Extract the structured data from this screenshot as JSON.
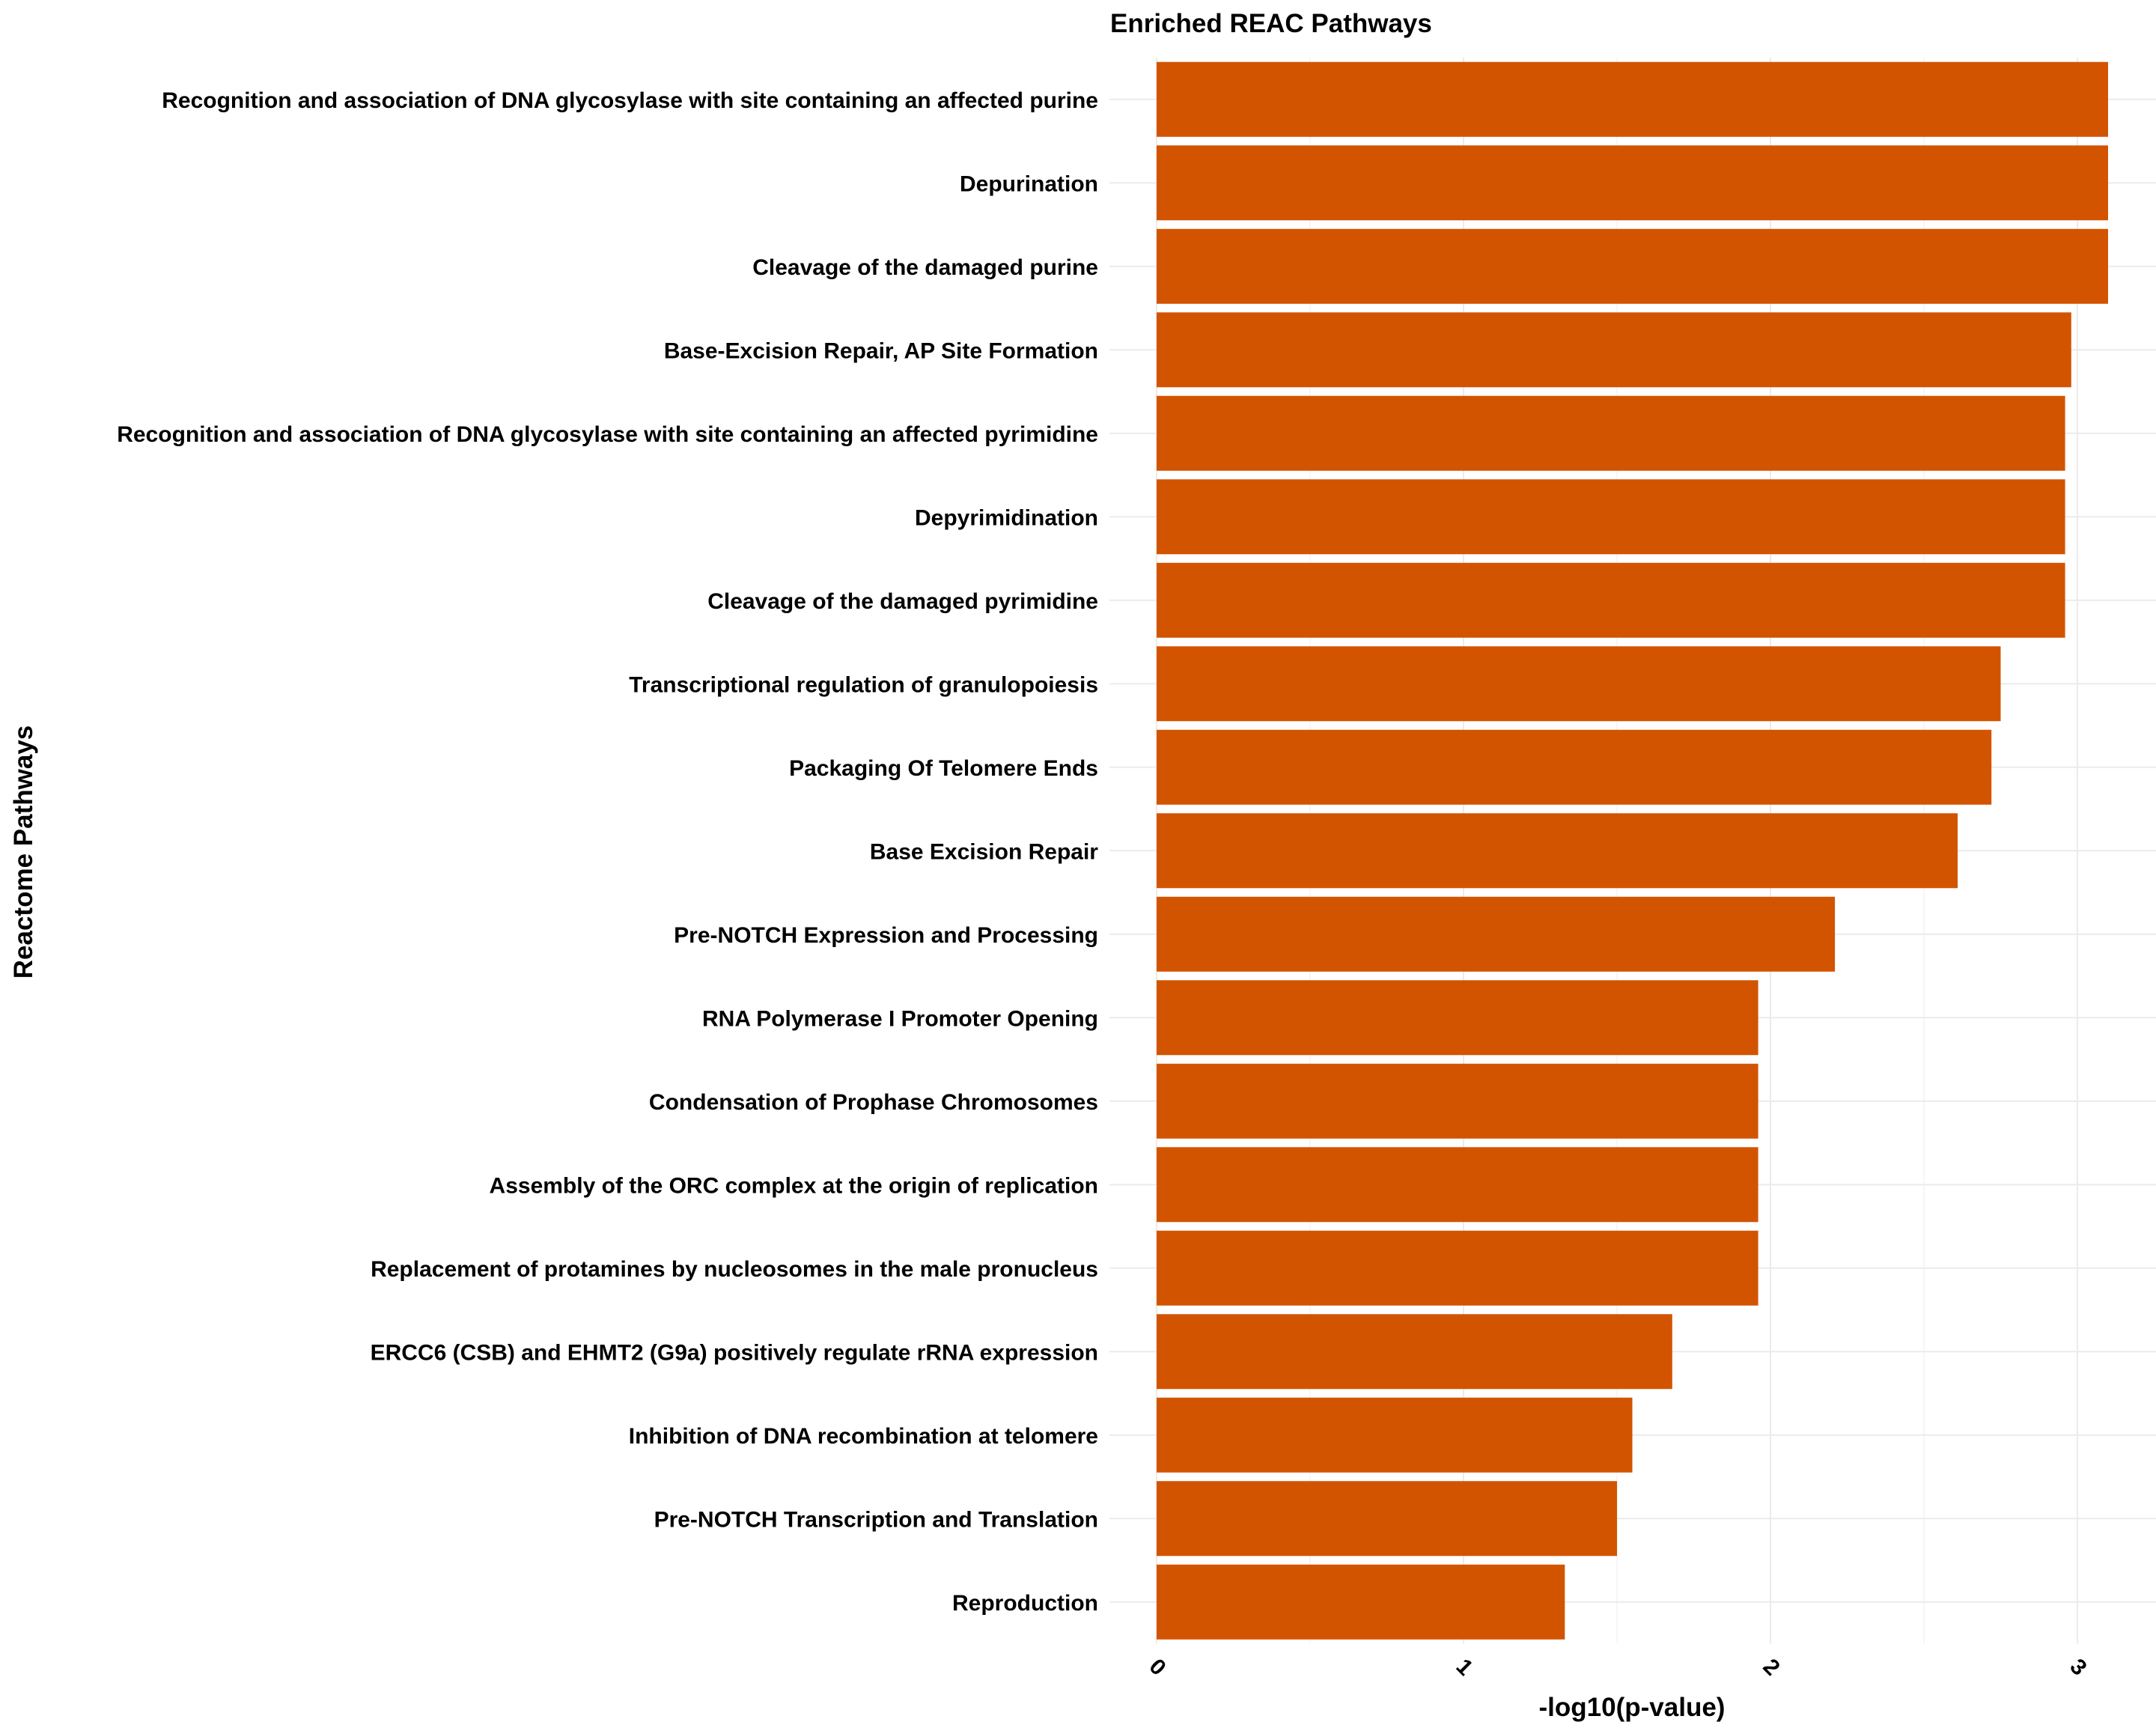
{
  "chart_data": {
    "type": "bar",
    "orientation": "horizontal",
    "title": "Enriched REAC Pathways",
    "xlabel": "-log10(p-value)",
    "ylabel": "Reactome Pathways",
    "xlim": [
      0,
      3.25
    ],
    "xticks": [
      "0",
      "1",
      "2",
      "3"
    ],
    "grid": true,
    "bar_color": "#D35400",
    "categories": [
      "Recognition and association of DNA glycosylase with site containing an affected purine",
      "Depurination",
      "Cleavage of the damaged purine",
      "Base-Excision Repair, AP Site Formation",
      "Recognition and association of DNA glycosylase with site containing an affected pyrimidine",
      "Depyrimidination",
      "Cleavage of the damaged pyrimidine",
      "Transcriptional regulation of granulopoiesis",
      "Packaging Of Telomere Ends",
      "Base Excision Repair",
      "Pre-NOTCH Expression and Processing",
      "RNA Polymerase I Promoter Opening",
      "Condensation of Prophase Chromosomes",
      "Assembly of the ORC complex at the origin of replication",
      "Replacement of protamines by nucleosomes in the male pronucleus",
      "ERCC6 (CSB) and EHMT2 (G9a) positively regulate rRNA expression",
      "Inhibition of DNA recombination at telomere",
      "Pre-NOTCH Transcription and Translation",
      "Reproduction"
    ],
    "values": [
      3.1,
      3.1,
      3.1,
      2.98,
      2.96,
      2.96,
      2.96,
      2.75,
      2.72,
      2.61,
      2.21,
      1.96,
      1.96,
      1.96,
      1.96,
      1.68,
      1.55,
      1.5,
      1.33
    ]
  }
}
